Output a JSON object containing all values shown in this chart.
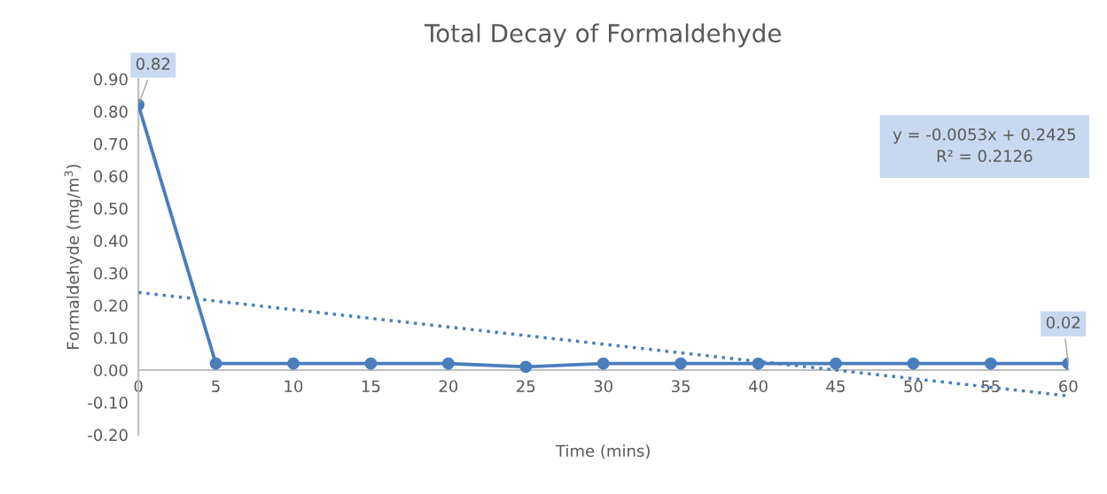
{
  "chart_data": {
    "type": "line",
    "title": "Total Decay of Formaldehyde",
    "xlabel": "Time (mins)",
    "ylabel": "Formaldehyde (mg/m$^{3}$)",
    "x": [
      0,
      5,
      10,
      15,
      20,
      25,
      30,
      35,
      40,
      45,
      50,
      55,
      60
    ],
    "series": [
      {
        "color": "#4a7ebb",
        "marker": "circle",
        "line_style": "solid",
        "values": [
          0.82,
          0.02,
          0.02,
          0.02,
          0.02,
          0.01,
          0.02,
          0.02,
          0.02,
          0.02,
          0.02,
          0.02,
          0.02
        ],
        "value_labels": [
          "0.82",
          null,
          null,
          null,
          null,
          null,
          null,
          null,
          null,
          null,
          null,
          null,
          "0.02"
        ]
      },
      {
        "type": "line",
        "color": "#4a7ebb",
        "marker": "none",
        "line_style": "dotted",
        "x": [
          0,
          60
        ],
        "values": [
          0.24,
          -0.08
        ]
      }
    ],
    "annotations": [
      "y = -0.0053x + 0.2425\nR² = 0.2126"
    ],
    "xlim": [
      0,
      60
    ],
    "xticks": [
      0,
      5,
      10,
      15,
      20,
      25,
      30,
      35,
      40,
      45,
      50,
      55,
      60
    ],
    "ylim": [
      -0.2,
      0.9
    ],
    "yticks": [
      {
        "value": -0.2,
        "label": "-0.20"
      },
      {
        "value": -0.1,
        "label": "-0.10"
      },
      {
        "value": 0,
        "label": "0.00"
      },
      {
        "value": 0.1,
        "label": "0.10"
      },
      {
        "value": 0.2,
        "label": "0.20"
      },
      {
        "value": 0.3,
        "label": "0.30"
      },
      {
        "value": 0.4,
        "label": "0.40"
      },
      {
        "value": 0.5,
        "label": "0.50"
      },
      {
        "value": 0.6,
        "label": "0.60"
      },
      {
        "value": 0.7,
        "label": "0.70"
      },
      {
        "value": 0.8,
        "label": "0.80"
      },
      {
        "value": 0.9,
        "label": "0.90"
      }
    ],
    "grid": false,
    "legend": false
  }
}
